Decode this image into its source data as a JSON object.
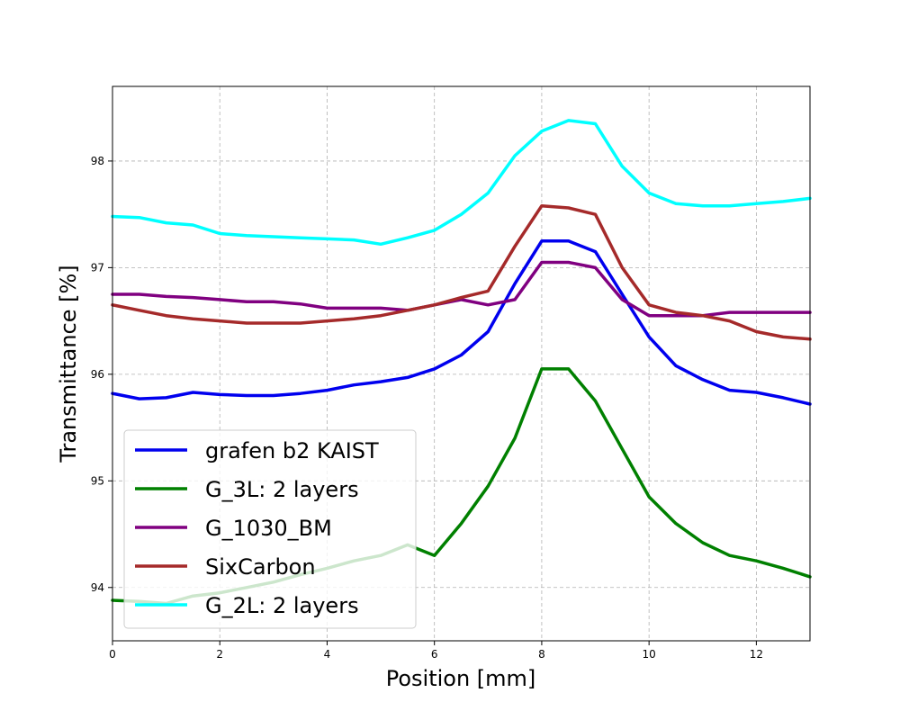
{
  "chart_data": {
    "type": "line",
    "title": "",
    "xlabel": "Position [mm]",
    "ylabel": "Transmittance [%]",
    "xlim": [
      0,
      13
    ],
    "ylim": [
      93.5,
      98.7
    ],
    "xticks": [
      0,
      2,
      4,
      6,
      8,
      10,
      12
    ],
    "yticks": [
      94,
      95,
      96,
      97,
      98
    ],
    "grid": true,
    "legend_position": "lower-left",
    "series": [
      {
        "name": "grafen b2 KAIST",
        "color": "#0000ee",
        "x": [
          0,
          0.5,
          1,
          1.5,
          2,
          2.5,
          3,
          3.5,
          4,
          4.5,
          5,
          5.5,
          6,
          6.5,
          7,
          7.5,
          8,
          8.5,
          9,
          9.5,
          10,
          10.5,
          11,
          11.5,
          12,
          12.5,
          13
        ],
        "values": [
          95.82,
          95.77,
          95.78,
          95.83,
          95.81,
          95.8,
          95.8,
          95.82,
          95.85,
          95.9,
          95.93,
          95.97,
          96.05,
          96.18,
          96.4,
          96.85,
          97.25,
          97.25,
          97.15,
          96.75,
          96.35,
          96.08,
          95.95,
          95.85,
          95.83,
          95.78,
          95.72
        ]
      },
      {
        "name": "G_3L: 2 layers",
        "color": "#008000",
        "x": [
          0,
          0.5,
          1,
          1.5,
          2,
          2.5,
          3,
          3.5,
          4,
          4.5,
          5,
          5.5,
          6,
          6.5,
          7,
          7.5,
          8,
          8.5,
          9,
          9.5,
          10,
          10.5,
          11,
          11.5,
          12,
          12.5,
          13
        ],
        "values": [
          93.88,
          93.87,
          93.85,
          93.92,
          93.95,
          94.0,
          94.05,
          94.12,
          94.18,
          94.25,
          94.3,
          94.4,
          94.3,
          94.6,
          94.95,
          95.4,
          96.05,
          96.05,
          95.75,
          95.3,
          94.85,
          94.6,
          94.42,
          94.3,
          94.25,
          94.18,
          94.1
        ]
      },
      {
        "name": "G_1030_BM",
        "color": "#800080",
        "x": [
          0,
          0.5,
          1,
          1.5,
          2,
          2.5,
          3,
          3.5,
          4,
          4.5,
          5,
          5.5,
          6,
          6.5,
          7,
          7.5,
          8,
          8.5,
          9,
          9.5,
          10,
          10.5,
          11,
          11.5,
          12,
          12.5,
          13
        ],
        "values": [
          96.75,
          96.75,
          96.73,
          96.72,
          96.7,
          96.68,
          96.68,
          96.66,
          96.62,
          96.62,
          96.62,
          96.6,
          96.65,
          96.7,
          96.65,
          96.7,
          97.05,
          97.05,
          97.0,
          96.7,
          96.55,
          96.55,
          96.55,
          96.58,
          96.58,
          96.58,
          96.58
        ]
      },
      {
        "name": "SixCarbon",
        "color": "#a52a2a",
        "x": [
          0,
          0.5,
          1,
          1.5,
          2,
          2.5,
          3,
          3.5,
          4,
          4.5,
          5,
          5.5,
          6,
          6.5,
          7,
          7.5,
          8,
          8.5,
          9,
          9.5,
          10,
          10.5,
          11,
          11.5,
          12,
          12.5,
          13
        ],
        "values": [
          96.65,
          96.6,
          96.55,
          96.52,
          96.5,
          96.48,
          96.48,
          96.48,
          96.5,
          96.52,
          96.55,
          96.6,
          96.65,
          96.72,
          96.78,
          97.2,
          97.58,
          97.56,
          97.5,
          97.0,
          96.65,
          96.58,
          96.55,
          96.5,
          96.4,
          96.35,
          96.33
        ]
      },
      {
        "name": "G_2L: 2 layers",
        "color": "#00ffff",
        "x": [
          0,
          0.5,
          1,
          1.5,
          2,
          2.5,
          3,
          3.5,
          4,
          4.5,
          5,
          5.5,
          6,
          6.5,
          7,
          7.5,
          8,
          8.5,
          9,
          9.5,
          10,
          10.5,
          11,
          11.5,
          12,
          12.5,
          13
        ],
        "values": [
          97.48,
          97.47,
          97.42,
          97.4,
          97.32,
          97.3,
          97.29,
          97.28,
          97.27,
          97.26,
          97.22,
          97.28,
          97.35,
          97.5,
          97.7,
          98.05,
          98.28,
          98.38,
          98.35,
          97.95,
          97.7,
          97.6,
          97.58,
          97.58,
          97.6,
          97.62,
          97.65
        ]
      }
    ]
  }
}
